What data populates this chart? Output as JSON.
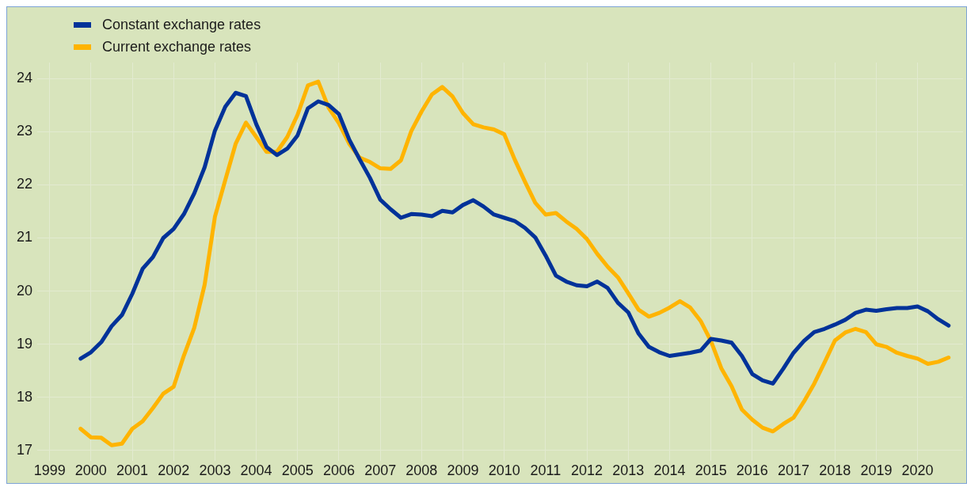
{
  "chart_data": {
    "type": "line",
    "x": [
      1999.75,
      2000,
      2000.25,
      2000.5,
      2000.75,
      2001,
      2001.25,
      2001.5,
      2001.75,
      2002,
      2002.25,
      2002.5,
      2002.75,
      2003,
      2003.25,
      2003.5,
      2003.75,
      2004,
      2004.25,
      2004.5,
      2004.75,
      2005,
      2005.25,
      2005.5,
      2005.75,
      2006,
      2006.25,
      2006.5,
      2006.75,
      2007,
      2007.25,
      2007.5,
      2007.75,
      2008,
      2008.25,
      2008.5,
      2008.75,
      2009,
      2009.25,
      2009.5,
      2009.75,
      2010,
      2010.25,
      2010.5,
      2010.75,
      2011,
      2011.25,
      2011.5,
      2011.75,
      2012,
      2012.25,
      2012.5,
      2012.75,
      2013,
      2013.25,
      2013.5,
      2013.75,
      2014,
      2014.25,
      2014.5,
      2014.75,
      2015,
      2015.25,
      2015.5,
      2015.75,
      2016,
      2016.25,
      2016.5,
      2016.75,
      2017,
      2017.25,
      2017.5,
      2017.75,
      2018,
      2018.25,
      2018.5,
      2018.75,
      2019,
      2019.25,
      2019.5,
      2019.75,
      2020,
      2020.25,
      2020.5,
      2020.75
    ],
    "series": [
      {
        "name": "Constant exchange rates",
        "color": "#003299",
        "values": [
          18.73,
          18.85,
          19.04,
          19.34,
          19.55,
          19.95,
          20.42,
          20.64,
          21.0,
          21.17,
          21.45,
          21.84,
          22.33,
          23.02,
          23.47,
          23.73,
          23.67,
          23.14,
          22.71,
          22.56,
          22.68,
          22.93,
          23.44,
          23.57,
          23.5,
          23.33,
          22.85,
          22.48,
          22.13,
          21.72,
          21.54,
          21.38,
          21.45,
          21.44,
          21.41,
          21.51,
          21.48,
          21.62,
          21.71,
          21.59,
          21.44,
          21.38,
          21.32,
          21.19,
          21.01,
          20.67,
          20.29,
          20.18,
          20.11,
          20.09,
          20.18,
          20.06,
          19.78,
          19.6,
          19.2,
          18.95,
          18.85,
          18.78,
          18.81,
          18.84,
          18.88,
          19.1,
          19.07,
          19.03,
          18.78,
          18.44,
          18.32,
          18.26,
          18.54,
          18.84,
          19.06,
          19.23,
          19.29,
          19.37,
          19.46,
          19.59,
          19.65,
          19.63,
          19.66,
          19.68,
          19.68,
          19.71,
          19.62,
          19.47,
          19.35
        ]
      },
      {
        "name": "Current exchange rates",
        "color": "#ffb400",
        "values": [
          17.41,
          17.25,
          17.24,
          17.1,
          17.13,
          17.41,
          17.55,
          17.8,
          18.07,
          18.2,
          18.79,
          19.31,
          20.12,
          21.4,
          22.09,
          22.77,
          23.17,
          22.9,
          22.62,
          22.62,
          22.9,
          23.32,
          23.87,
          23.94,
          23.45,
          23.16,
          22.77,
          22.51,
          22.43,
          22.31,
          22.3,
          22.46,
          23.01,
          23.38,
          23.7,
          23.84,
          23.66,
          23.35,
          23.14,
          23.08,
          23.04,
          22.95,
          22.48,
          22.06,
          21.66,
          21.44,
          21.47,
          21.31,
          21.17,
          20.98,
          20.7,
          20.46,
          20.26,
          19.96,
          19.65,
          19.52,
          19.59,
          19.69,
          19.81,
          19.69,
          19.44,
          19.06,
          18.55,
          18.21,
          17.77,
          17.58,
          17.43,
          17.36,
          17.5,
          17.62,
          17.92,
          18.26,
          18.66,
          19.07,
          19.22,
          19.29,
          19.23,
          19.0,
          18.95,
          18.84,
          18.78,
          18.73,
          18.63,
          18.67,
          18.75
        ]
      }
    ],
    "xlim": [
      1998.7,
      2021.1
    ],
    "xticks": [
      1999,
      2000,
      2001,
      2002,
      2003,
      2004,
      2005,
      2006,
      2007,
      2008,
      2009,
      2010,
      2011,
      2012,
      2013,
      2014,
      2015,
      2016,
      2017,
      2018,
      2019,
      2020
    ],
    "ylim": [
      16.8,
      24.3
    ],
    "yticks": [
      17,
      18,
      19,
      20,
      21,
      22,
      23,
      24
    ],
    "grid": true,
    "legend": "top left",
    "marker": "none",
    "line_style": "solid"
  }
}
